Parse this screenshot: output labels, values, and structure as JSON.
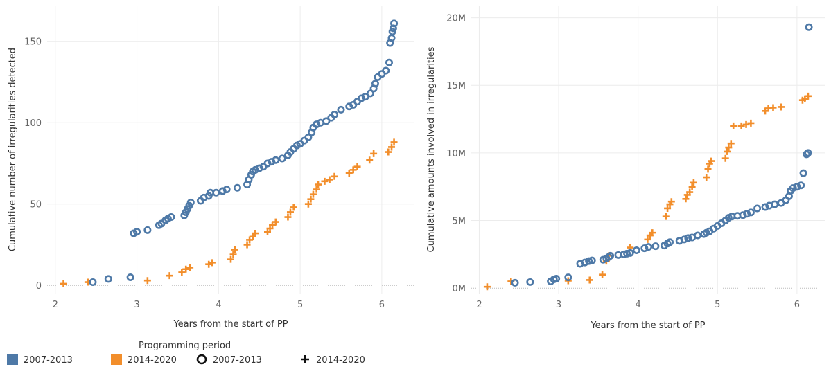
{
  "colors": {
    "s2007": "#4e79a7",
    "s2014": "#f28e2b",
    "grid": "#ececec",
    "zero": "#bbbbbb"
  },
  "legend": {
    "title": "Programming  period",
    "items": [
      {
        "label": "2007-2013",
        "kind": "color-swatch",
        "color": "#4e79a7"
      },
      {
        "label": "2014-2020",
        "kind": "color-swatch",
        "color": "#f28e2b"
      },
      {
        "label": "2007-2013",
        "kind": "circle-shape"
      },
      {
        "label": "2014-2020",
        "kind": "plus-shape"
      }
    ]
  },
  "chart_data": [
    {
      "type": "scatter",
      "xlabel": "Years from the start of PP",
      "ylabel": "Cumulative number of irregularities detected",
      "xlim": [
        1.9,
        6.4
      ],
      "ylim": [
        -5,
        172
      ],
      "x_ticks": [
        2,
        3,
        4,
        5,
        6
      ],
      "y_ticks": [
        0,
        50,
        100,
        150
      ],
      "y_tick_labels": [
        "0",
        "50",
        "100",
        "150"
      ],
      "grid": true,
      "series": [
        {
          "name": "2007-2013",
          "marker": "circle",
          "points": [
            [
              2.46,
              2
            ],
            [
              2.65,
              4
            ],
            [
              2.92,
              5
            ],
            [
              2.96,
              32
            ],
            [
              3.0,
              33
            ],
            [
              3.13,
              34
            ],
            [
              3.27,
              37
            ],
            [
              3.3,
              38
            ],
            [
              3.35,
              40
            ],
            [
              3.38,
              41
            ],
            [
              3.42,
              42
            ],
            [
              3.58,
              43
            ],
            [
              3.6,
              45
            ],
            [
              3.62,
              47
            ],
            [
              3.64,
              49
            ],
            [
              3.66,
              51
            ],
            [
              3.78,
              52
            ],
            [
              3.82,
              54
            ],
            [
              3.88,
              55
            ],
            [
              3.9,
              57
            ],
            [
              3.97,
              57
            ],
            [
              4.05,
              58
            ],
            [
              4.1,
              59
            ],
            [
              4.23,
              60
            ],
            [
              4.35,
              62
            ],
            [
              4.37,
              65
            ],
            [
              4.4,
              68
            ],
            [
              4.42,
              70
            ],
            [
              4.45,
              71
            ],
            [
              4.5,
              72
            ],
            [
              4.55,
              73
            ],
            [
              4.6,
              75
            ],
            [
              4.65,
              76
            ],
            [
              4.7,
              77
            ],
            [
              4.78,
              78
            ],
            [
              4.85,
              80
            ],
            [
              4.88,
              82
            ],
            [
              4.92,
              84
            ],
            [
              4.96,
              86
            ],
            [
              5.0,
              87
            ],
            [
              5.05,
              89
            ],
            [
              5.1,
              91
            ],
            [
              5.14,
              94
            ],
            [
              5.16,
              97
            ],
            [
              5.2,
              99
            ],
            [
              5.25,
              100
            ],
            [
              5.32,
              101
            ],
            [
              5.38,
              103
            ],
            [
              5.42,
              105
            ],
            [
              5.5,
              108
            ],
            [
              5.6,
              110
            ],
            [
              5.65,
              111
            ],
            [
              5.7,
              113
            ],
            [
              5.75,
              115
            ],
            [
              5.8,
              116
            ],
            [
              5.86,
              118
            ],
            [
              5.9,
              121
            ],
            [
              5.92,
              124
            ],
            [
              5.95,
              128
            ],
            [
              6.0,
              130
            ],
            [
              6.05,
              132
            ],
            [
              6.09,
              137
            ],
            [
              6.1,
              149
            ],
            [
              6.12,
              152
            ],
            [
              6.13,
              156
            ],
            [
              6.14,
              158
            ],
            [
              6.15,
              161
            ]
          ]
        },
        {
          "name": "2014-2020",
          "marker": "plus",
          "points": [
            [
              2.1,
              1
            ],
            [
              2.4,
              2
            ],
            [
              3.13,
              3
            ],
            [
              3.4,
              6
            ],
            [
              3.55,
              8
            ],
            [
              3.6,
              10
            ],
            [
              3.65,
              11
            ],
            [
              3.88,
              13
            ],
            [
              3.92,
              14
            ],
            [
              4.15,
              16
            ],
            [
              4.18,
              19
            ],
            [
              4.2,
              22
            ],
            [
              4.35,
              25
            ],
            [
              4.38,
              28
            ],
            [
              4.42,
              30
            ],
            [
              4.45,
              32
            ],
            [
              4.6,
              33
            ],
            [
              4.63,
              35
            ],
            [
              4.66,
              37
            ],
            [
              4.7,
              39
            ],
            [
              4.85,
              42
            ],
            [
              4.88,
              45
            ],
            [
              4.92,
              48
            ],
            [
              5.1,
              50
            ],
            [
              5.13,
              53
            ],
            [
              5.16,
              56
            ],
            [
              5.2,
              59
            ],
            [
              5.22,
              62
            ],
            [
              5.3,
              64
            ],
            [
              5.36,
              65
            ],
            [
              5.42,
              67
            ],
            [
              5.6,
              69
            ],
            [
              5.65,
              71
            ],
            [
              5.7,
              73
            ],
            [
              5.85,
              77
            ],
            [
              5.9,
              81
            ],
            [
              6.08,
              82
            ],
            [
              6.12,
              85
            ],
            [
              6.15,
              88
            ]
          ]
        }
      ]
    },
    {
      "type": "scatter",
      "xlabel": "Years from the start of PP",
      "ylabel": "Cumulative amounts involved in irregularities",
      "xlim": [
        1.9,
        6.35
      ],
      "ylim": [
        -0.4,
        20.9
      ],
      "x_ticks": [
        2,
        3,
        4,
        5,
        6
      ],
      "y_ticks": [
        0,
        5,
        10,
        15,
        20
      ],
      "y_tick_labels": [
        "0M",
        "5M",
        "10M",
        "15M",
        "20M"
      ],
      "grid": true,
      "series": [
        {
          "name": "2007-2013",
          "marker": "circle",
          "points": [
            [
              2.45,
              0.4
            ],
            [
              2.64,
              0.45
            ],
            [
              2.9,
              0.5
            ],
            [
              2.94,
              0.65
            ],
            [
              2.97,
              0.7
            ],
            [
              3.12,
              0.8
            ],
            [
              3.27,
              1.8
            ],
            [
              3.33,
              1.9
            ],
            [
              3.38,
              2.0
            ],
            [
              3.42,
              2.05
            ],
            [
              3.56,
              2.1
            ],
            [
              3.6,
              2.2
            ],
            [
              3.63,
              2.3
            ],
            [
              3.65,
              2.4
            ],
            [
              3.75,
              2.45
            ],
            [
              3.82,
              2.5
            ],
            [
              3.86,
              2.55
            ],
            [
              3.9,
              2.6
            ],
            [
              3.98,
              2.8
            ],
            [
              4.08,
              2.95
            ],
            [
              4.13,
              3.05
            ],
            [
              4.22,
              3.1
            ],
            [
              4.33,
              3.15
            ],
            [
              4.37,
              3.3
            ],
            [
              4.4,
              3.4
            ],
            [
              4.52,
              3.5
            ],
            [
              4.58,
              3.6
            ],
            [
              4.63,
              3.7
            ],
            [
              4.68,
              3.75
            ],
            [
              4.75,
              3.9
            ],
            [
              4.83,
              4.0
            ],
            [
              4.86,
              4.1
            ],
            [
              4.9,
              4.2
            ],
            [
              4.95,
              4.4
            ],
            [
              5.0,
              4.6
            ],
            [
              5.05,
              4.8
            ],
            [
              5.1,
              5.0
            ],
            [
              5.14,
              5.2
            ],
            [
              5.18,
              5.3
            ],
            [
              5.25,
              5.35
            ],
            [
              5.32,
              5.4
            ],
            [
              5.37,
              5.5
            ],
            [
              5.42,
              5.6
            ],
            [
              5.5,
              5.9
            ],
            [
              5.6,
              6.0
            ],
            [
              5.65,
              6.1
            ],
            [
              5.72,
              6.2
            ],
            [
              5.8,
              6.3
            ],
            [
              5.86,
              6.5
            ],
            [
              5.9,
              6.8
            ],
            [
              5.92,
              7.2
            ],
            [
              5.95,
              7.4
            ],
            [
              6.0,
              7.5
            ],
            [
              6.05,
              7.6
            ],
            [
              6.08,
              8.5
            ],
            [
              6.12,
              9.9
            ],
            [
              6.14,
              10.0
            ],
            [
              6.15,
              19.3
            ]
          ]
        },
        {
          "name": "2014-2020",
          "marker": "plus",
          "points": [
            [
              2.1,
              0.1
            ],
            [
              2.4,
              0.5
            ],
            [
              3.12,
              0.55
            ],
            [
              3.39,
              0.6
            ],
            [
              3.55,
              1.0
            ],
            [
              3.6,
              2.0
            ],
            [
              3.63,
              2.4
            ],
            [
              3.9,
              3.0
            ],
            [
              4.12,
              3.6
            ],
            [
              4.15,
              3.9
            ],
            [
              4.18,
              4.1
            ],
            [
              4.35,
              5.3
            ],
            [
              4.37,
              5.9
            ],
            [
              4.4,
              6.2
            ],
            [
              4.42,
              6.4
            ],
            [
              4.6,
              6.6
            ],
            [
              4.62,
              6.9
            ],
            [
              4.65,
              7.1
            ],
            [
              4.68,
              7.5
            ],
            [
              4.7,
              7.8
            ],
            [
              4.86,
              8.2
            ],
            [
              4.88,
              8.8
            ],
            [
              4.9,
              9.2
            ],
            [
              4.92,
              9.4
            ],
            [
              5.1,
              9.6
            ],
            [
              5.12,
              10.1
            ],
            [
              5.14,
              10.4
            ],
            [
              5.17,
              10.7
            ],
            [
              5.2,
              12.0
            ],
            [
              5.3,
              12.0
            ],
            [
              5.36,
              12.1
            ],
            [
              5.42,
              12.2
            ],
            [
              5.6,
              13.1
            ],
            [
              5.64,
              13.3
            ],
            [
              5.7,
              13.35
            ],
            [
              5.8,
              13.4
            ],
            [
              6.07,
              13.9
            ],
            [
              6.1,
              14.0
            ],
            [
              6.14,
              14.2
            ]
          ]
        }
      ]
    }
  ]
}
